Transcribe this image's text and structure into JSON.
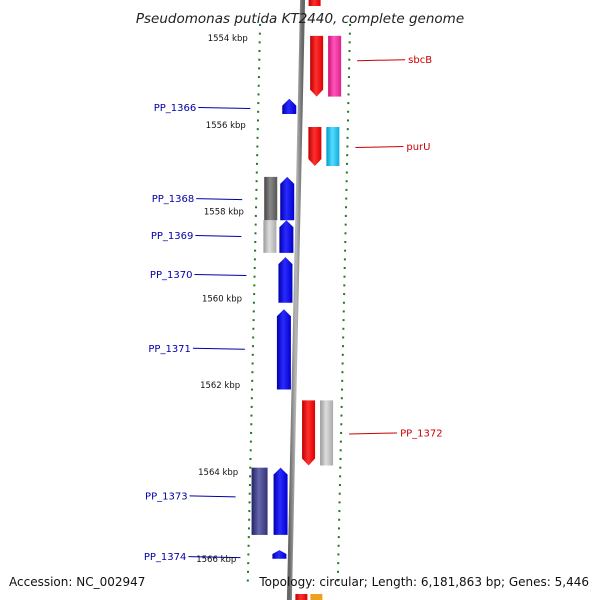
{
  "title": "Pseudomonas putida KT2440, complete genome",
  "footer": {
    "accession": "Accession: NC_002947",
    "topology": "Topology: circular; Length: 6,181,863 bp; Genes: 5,446"
  },
  "colors": {
    "backbone": "#888888",
    "tick": "#1e7a1e",
    "forward": "#0000ee",
    "forward_label": "#0000aa",
    "reverse": "#ee0000",
    "reverse_label": "#cc0000",
    "magenta": "#ee3399",
    "cyan": "#22bbee",
    "grey_dark": "#666666",
    "grey_light": "#bbbbbb",
    "navy": "#444488"
  },
  "scale": {
    "unit": "kbp",
    "labels": [
      {
        "value": 1554,
        "text": "1554 kbp"
      },
      {
        "value": 1556,
        "text": "1556 kbp"
      },
      {
        "value": 1558,
        "text": "1558 kbp"
      },
      {
        "value": 1560,
        "text": "1560 kbp"
      },
      {
        "value": 1562,
        "text": "1562 kbp"
      },
      {
        "value": 1564,
        "text": "1564 kbp"
      },
      {
        "value": 1566,
        "text": "1566 kbp"
      }
    ]
  },
  "features": [
    {
      "id": "sbcB",
      "label": "sbcB",
      "strand": "reverse",
      "start_kbp": 1553.95,
      "end_kbp": 1555.35,
      "label_kbp": 1554.5,
      "cog_color": "magenta"
    },
    {
      "id": "PP_1366",
      "label": "PP_1366",
      "strand": "forward",
      "start_kbp": 1555.4,
      "end_kbp": 1555.75,
      "label_kbp": 1555.6
    },
    {
      "id": "purU",
      "label": "purU",
      "strand": "reverse",
      "start_kbp": 1556.05,
      "end_kbp": 1556.95,
      "label_kbp": 1556.5,
      "cog_color": "cyan"
    },
    {
      "id": "PP_1368",
      "label": "PP_1368",
      "strand": "forward",
      "start_kbp": 1557.2,
      "end_kbp": 1558.2,
      "label_kbp": 1557.7,
      "cog_color": "grey_dark"
    },
    {
      "id": "PP_1369",
      "label": "PP_1369",
      "strand": "forward",
      "start_kbp": 1558.2,
      "end_kbp": 1558.95,
      "label_kbp": 1558.55,
      "cog_color": "grey_light"
    },
    {
      "id": "PP_1370",
      "label": "PP_1370",
      "strand": "forward",
      "start_kbp": 1559.05,
      "end_kbp": 1560.1,
      "label_kbp": 1559.45
    },
    {
      "id": "PP_1371",
      "label": "PP_1371",
      "strand": "forward",
      "start_kbp": 1560.25,
      "end_kbp": 1562.1,
      "label_kbp": 1561.15
    },
    {
      "id": "PP_1372",
      "label": "PP_1372",
      "strand": "reverse",
      "start_kbp": 1562.35,
      "end_kbp": 1563.85,
      "label_kbp": 1563.1,
      "cog_color": "grey_light"
    },
    {
      "id": "PP_1373",
      "label": "PP_1373",
      "strand": "forward",
      "start_kbp": 1563.9,
      "end_kbp": 1565.45,
      "label_kbp": 1564.55,
      "cog_color": "navy"
    },
    {
      "id": "PP_1374",
      "label": "PP_1374",
      "strand": "forward",
      "start_kbp": 1565.8,
      "end_kbp": 1566.0,
      "label_kbp": 1565.95
    }
  ]
}
